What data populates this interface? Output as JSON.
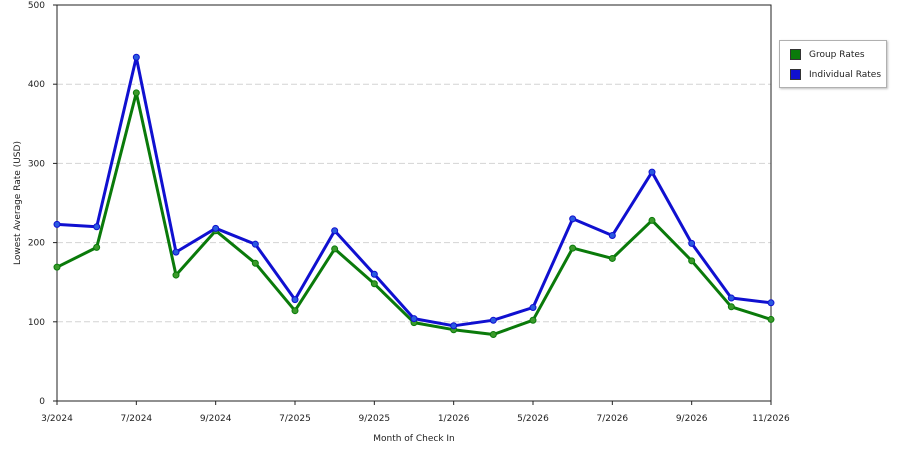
{
  "chart_data": {
    "type": "line",
    "ylabel": "Lowest Average Rate (USD)",
    "xlabel": "Month of Check In",
    "ylim": [
      0,
      500
    ],
    "yticks": [
      0,
      100,
      200,
      300,
      400,
      500
    ],
    "grid": true,
    "legend_position": "right",
    "x_tick_labels": [
      "3/2024",
      "7/2024",
      "9/2024",
      "7/2025",
      "9/2025",
      "1/2026",
      "5/2026",
      "7/2026",
      "9/2026",
      "11/2026"
    ],
    "x_tick_indices": [
      0,
      2,
      4,
      6,
      8,
      10,
      12,
      14,
      16,
      18
    ],
    "num_points": 19,
    "series": [
      {
        "name": "Group Rates",
        "color": "#0a7a0a",
        "marker_color": "#3a9a2a",
        "values": [
          169,
          194,
          389,
          159,
          215,
          174,
          114,
          192,
          148,
          99,
          90,
          84,
          102,
          193,
          180,
          228,
          177,
          119,
          103
        ]
      },
      {
        "name": "Individual Rates",
        "color": "#1010d0",
        "marker_color": "#2a5ae0",
        "values": [
          223,
          220,
          434,
          188,
          218,
          198,
          128,
          215,
          160,
          104,
          95,
          102,
          118,
          230,
          209,
          289,
          199,
          130,
          124
        ]
      }
    ]
  }
}
